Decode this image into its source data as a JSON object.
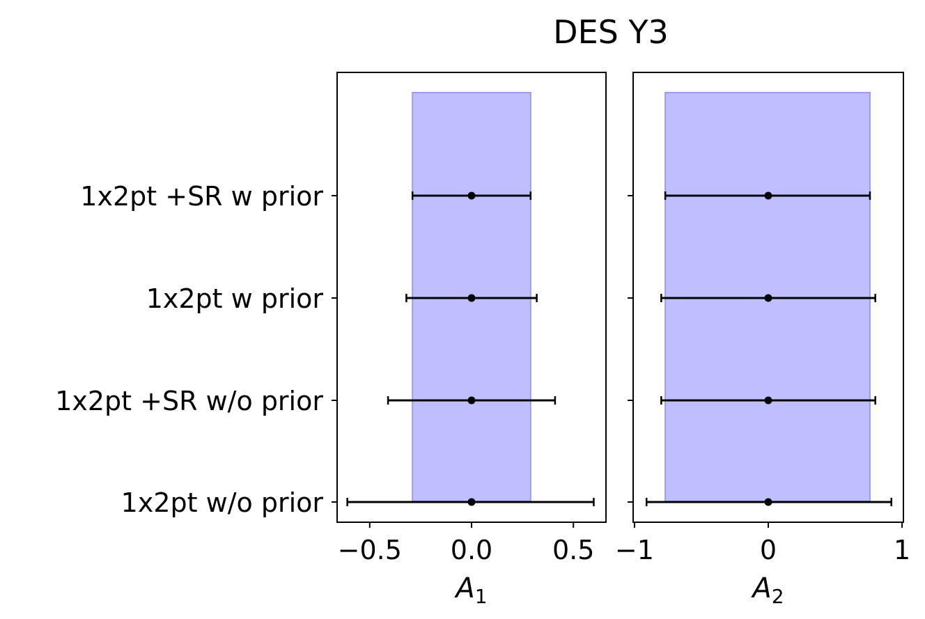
{
  "chart_data": {
    "type": "errorbar",
    "title": "DES Y3",
    "categories": [
      "1x2pt +SR w prior",
      "1x2pt w prior",
      "1x2pt +SR w/o prior",
      "1x2pt w/o prior"
    ],
    "panels": [
      {
        "xlabel_main": "A",
        "xlabel_sub": "1",
        "xlim": [
          -0.66,
          0.66
        ],
        "xticks": [
          -0.5,
          0.0,
          0.5
        ],
        "xtick_labels": [
          "−0.5",
          "0.0",
          "0.5"
        ],
        "prior_band": [
          -0.29,
          0.29
        ],
        "points": [
          {
            "label": "1x2pt +SR w prior",
            "mean": 0.0,
            "low": -0.29,
            "high": 0.29
          },
          {
            "label": "1x2pt w prior",
            "mean": 0.0,
            "low": -0.32,
            "high": 0.32
          },
          {
            "label": "1x2pt +SR w/o prior",
            "mean": 0.0,
            "low": -0.41,
            "high": 0.41
          },
          {
            "label": "1x2pt w/o prior",
            "mean": 0.0,
            "low": -0.61,
            "high": 0.6
          }
        ]
      },
      {
        "xlabel_main": "A",
        "xlabel_sub": "2",
        "xlim": [
          -1.01,
          1.01
        ],
        "xticks": [
          -1,
          0,
          1
        ],
        "xtick_labels": [
          "−1",
          "0",
          "1"
        ],
        "prior_band": [
          -0.77,
          0.76
        ],
        "points": [
          {
            "label": "1x2pt +SR w prior",
            "mean": 0.0,
            "low": -0.77,
            "high": 0.76
          },
          {
            "label": "1x2pt w prior",
            "mean": 0.0,
            "low": -0.8,
            "high": 0.8
          },
          {
            "label": "1x2pt +SR w/o prior",
            "mean": 0.0,
            "low": -0.8,
            "high": 0.8
          },
          {
            "label": "1x2pt w/o prior",
            "mean": 0.0,
            "low": -0.91,
            "high": 0.92
          }
        ]
      }
    ],
    "colors": {
      "band_fill": "#bfbfff",
      "band_edge": "#9b9bf0",
      "errorbar": "#000000"
    }
  }
}
